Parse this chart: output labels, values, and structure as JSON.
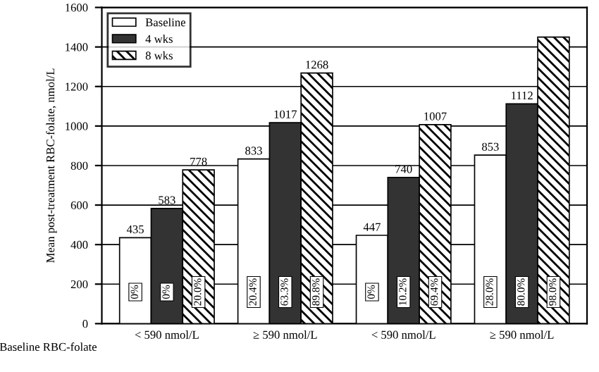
{
  "chart_data": {
    "type": "bar",
    "ylabel": "Mean post-treatment RBC-folate, nmol/L",
    "xlabel": "Baseline RBC-folate",
    "categories": [
      "< 590 nmol/L",
      "≥ 590 nmol/L",
      "< 590 nmol/L",
      "≥ 590 nmol/L"
    ],
    "series": [
      {
        "name": "Baseline",
        "color": "#ffffff",
        "values": [
          435,
          833,
          447,
          853
        ],
        "value_labels": [
          "435",
          "833",
          "447",
          "853"
        ]
      },
      {
        "name": "4 wks",
        "color": "#333333",
        "values": [
          583,
          1017,
          740,
          1112
        ],
        "value_labels": [
          "583",
          "1017",
          "740",
          "1112"
        ]
      },
      {
        "name": "8 wks",
        "color": "#000000",
        "values": [
          778,
          1268,
          1007,
          1450
        ],
        "value_labels": [
          "778",
          "1268",
          "1007",
          null
        ]
      }
    ],
    "annotations": [
      "0%",
      "0%",
      "20.0%",
      "20.4%",
      "63.3%",
      "89.8%",
      "0%",
      "10.2%",
      "69.4%",
      "28.0%",
      "80.0%",
      "98.0%"
    ],
    "ylim": [
      0,
      1600
    ],
    "yticks": [
      0,
      200,
      400,
      600,
      800,
      1000,
      1200,
      1400,
      1600
    ],
    "grid": "y",
    "legend": "top left"
  }
}
